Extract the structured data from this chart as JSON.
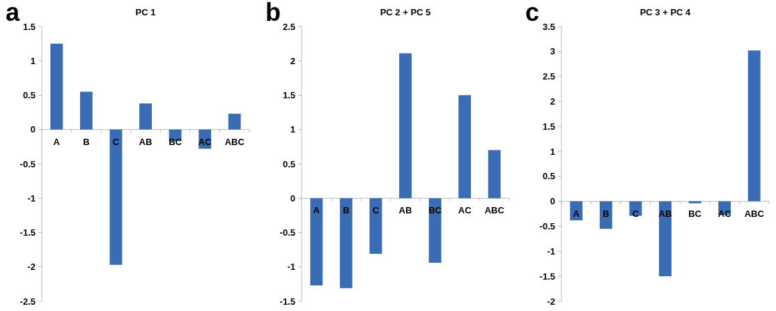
{
  "chart_data": [
    {
      "type": "bar",
      "title": "PC 1",
      "annotations": [
        "a"
      ],
      "categories": [
        "A",
        "B",
        "C",
        "AB",
        "BC",
        "AC",
        "ABC"
      ],
      "values": [
        1.25,
        0.55,
        -1.97,
        0.38,
        -0.17,
        -0.28,
        0.23
      ],
      "color": "#3a6cb4",
      "ylim": [
        -2.5,
        1.5
      ],
      "yticks": [
        {
          "value": -2.5,
          "label": "-2.5"
        },
        {
          "value": -2,
          "label": "-2"
        },
        {
          "value": -1.5,
          "label": "-1.5"
        },
        {
          "value": -1,
          "label": "-1"
        },
        {
          "value": -0.5,
          "label": "-0.5"
        },
        0,
        0.5,
        1,
        1.5
      ],
      "grid": false
    },
    {
      "type": "bar",
      "title": "PC 2 + PC 5",
      "annotations": [
        "b"
      ],
      "categories": [
        "A",
        "B",
        "C",
        "AB",
        "BC",
        "AC",
        "ABC"
      ],
      "values": [
        -1.27,
        -1.31,
        -0.81,
        2.11,
        -0.94,
        1.5,
        0.7
      ],
      "color": "#3a6cb4",
      "ylim": [
        -1.5,
        2.5
      ],
      "yticks": [
        {
          "value": -1.5,
          "label": "-1.5"
        },
        {
          "value": -1,
          "label": "-1"
        },
        {
          "value": -0.5,
          "label": "-0.5"
        },
        0,
        0.5,
        1,
        1.5,
        2,
        2.5
      ],
      "grid": false
    },
    {
      "type": "bar",
      "title": "PC 3 + PC 4",
      "annotations": [
        "c"
      ],
      "categories": [
        "A",
        "B",
        "C",
        "AB",
        "BC",
        "AC",
        "ABC"
      ],
      "values": [
        -0.38,
        -0.55,
        -0.29,
        -1.5,
        -0.04,
        -0.27,
        3.02
      ],
      "color": "#3a6cb4",
      "ylim": [
        -2,
        3.5
      ],
      "yticks": [
        {
          "value": -2,
          "label": "-2"
        },
        {
          "value": -1.5,
          "label": "-1.5"
        },
        {
          "value": -1,
          "label": "-1"
        },
        {
          "value": -0.5,
          "label": "-0.5"
        },
        0,
        0.5,
        1,
        1.5,
        2,
        2.5,
        3,
        3.5
      ],
      "grid": false
    }
  ]
}
